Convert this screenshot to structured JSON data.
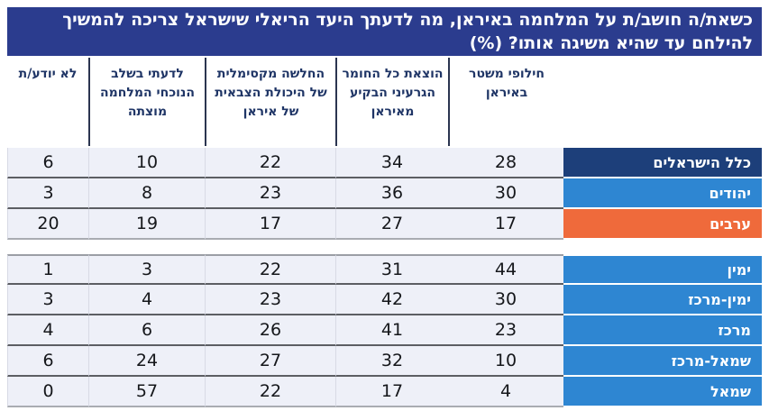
{
  "title": {
    "line1": "כשאת/ה חושב/ת על המלחמה באיראן, מה לדעתך היעד הריאלי שישראל צריכה להמשיך",
    "line2": "להילחם עד שהיא משיגה אותו?  (%)"
  },
  "colors": {
    "title_background": "#2b3c8e",
    "header_text": "#1f3566",
    "header_divider": "#2b3550",
    "data_cell_background": "#eef0f8",
    "label_navy": "#1d3f7a",
    "label_blue": "#2e86d2",
    "label_orange": "#ef6a3b",
    "label_text": "#ffffff"
  },
  "chart_data": {
    "type": "table",
    "title": "כשאת/ה חושב/ת על המלחמה באיראן, מה לדעתך היעד הריאלי שישראל צריכה להמשיך להילחם עד שהיא משיגה אותו? (%)",
    "columns": [
      "חילופי משטר באיראן",
      "הוצאת כל החומר הגרעיני הבקיע מאיראן",
      "החלשה מקסימלית של היכולת הצבאית של איראן",
      "לדעתי בשלב הנוכחי המלחמה מוצתה",
      "לא יודע/ת"
    ],
    "groups": [
      {
        "rows": [
          {
            "label": "כלל הישראלים",
            "color": "#1d3f7a",
            "values": [
              28,
              34,
              22,
              10,
              6
            ]
          },
          {
            "label": "יהודים",
            "color": "#2e86d2",
            "values": [
              30,
              36,
              23,
              8,
              3
            ]
          },
          {
            "label": "ערבים",
            "color": "#ef6a3b",
            "values": [
              17,
              27,
              17,
              19,
              20
            ]
          }
        ]
      },
      {
        "rows": [
          {
            "label": "ימין",
            "color": "#2e86d2",
            "values": [
              44,
              31,
              22,
              3,
              1
            ]
          },
          {
            "label": "ימין-מרכז",
            "color": "#2e86d2",
            "values": [
              30,
              42,
              23,
              4,
              3
            ]
          },
          {
            "label": "מרכז",
            "color": "#2e86d2",
            "values": [
              23,
              41,
              26,
              6,
              4
            ]
          },
          {
            "label": "שמאל-מרכז",
            "color": "#2e86d2",
            "values": [
              10,
              32,
              27,
              24,
              6
            ]
          },
          {
            "label": "שמאל",
            "color": "#2e86d2",
            "values": [
              4,
              17,
              22,
              57,
              0
            ]
          }
        ]
      }
    ]
  }
}
